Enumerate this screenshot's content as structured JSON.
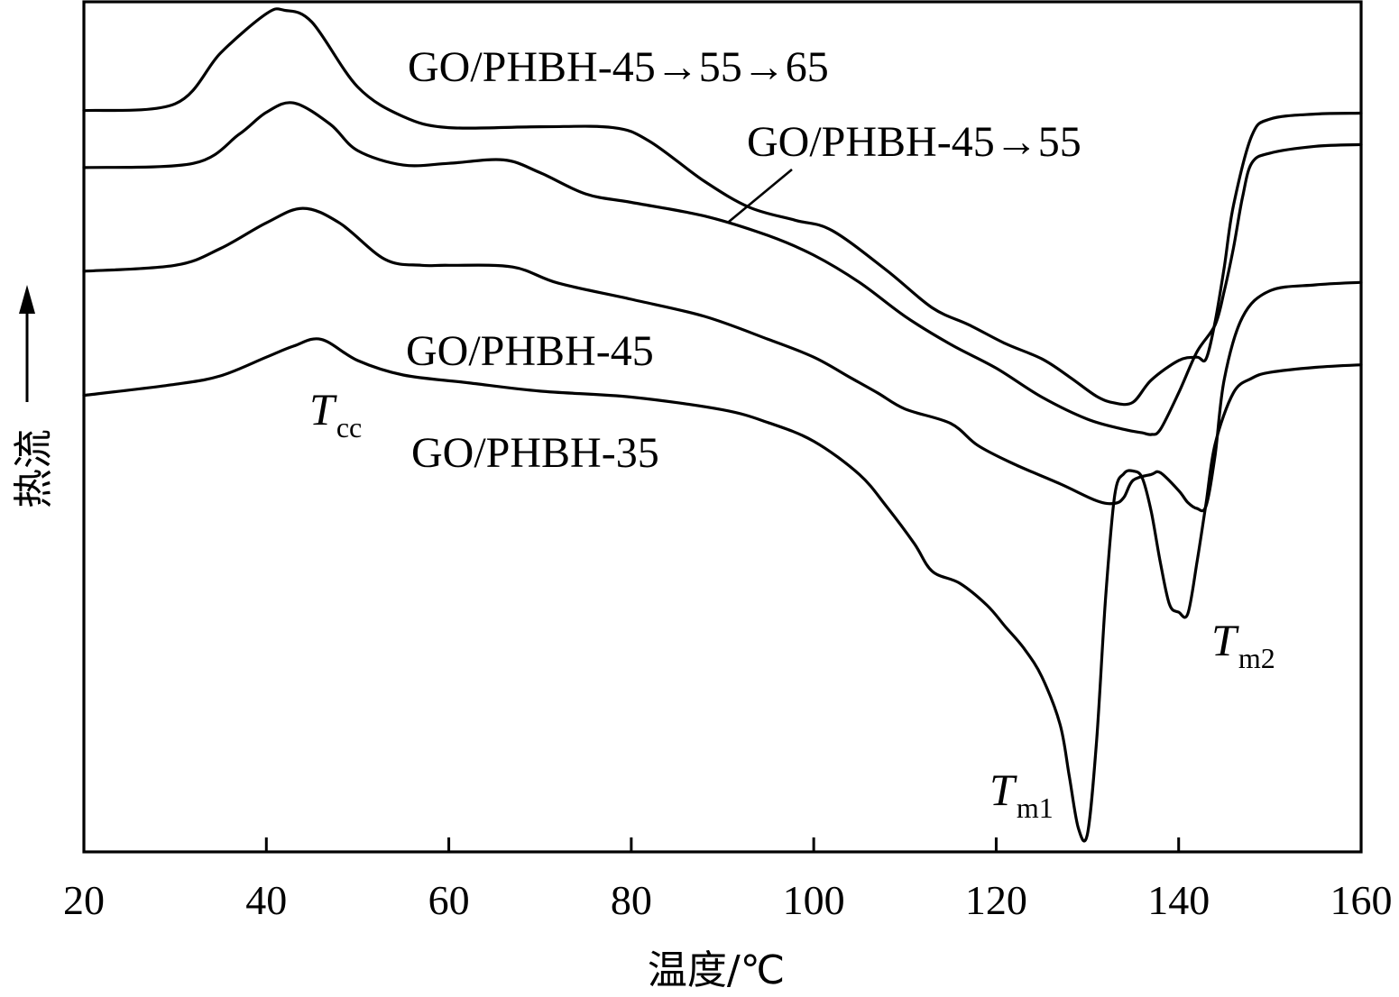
{
  "chart_data": {
    "type": "line",
    "xlabel": "温度/℃",
    "ylabel": "热流",
    "xlim": [
      20,
      160
    ],
    "xticks": [
      "20",
      "40",
      "60",
      "80",
      "100",
      "120",
      "140",
      "160"
    ],
    "yticks": [],
    "grid": false,
    "legend": "none",
    "series": [
      {
        "name": "GO/PHBH-45→55→65",
        "points": [
          [
            20,
            0.872
          ],
          [
            30,
            0.88
          ],
          [
            35,
            0.94
          ],
          [
            40,
            0.986
          ],
          [
            42,
            0.99
          ],
          [
            45,
            0.976
          ],
          [
            50,
            0.9
          ],
          [
            55,
            0.865
          ],
          [
            60,
            0.852
          ],
          [
            70,
            0.853
          ],
          [
            78,
            0.852
          ],
          [
            82,
            0.836
          ],
          [
            88,
            0.789
          ],
          [
            93,
            0.758
          ],
          [
            98,
            0.743
          ],
          [
            102,
            0.731
          ],
          [
            108,
            0.684
          ],
          [
            113,
            0.64
          ],
          [
            117,
            0.62
          ],
          [
            121,
            0.598
          ],
          [
            125,
            0.58
          ],
          [
            128,
            0.559
          ],
          [
            131,
            0.536
          ],
          [
            133,
            0.528
          ],
          [
            135,
            0.529
          ],
          [
            137,
            0.555
          ],
          [
            140,
            0.578
          ],
          [
            142,
            0.582
          ],
          [
            143,
            0.58
          ],
          [
            144,
            0.624
          ],
          [
            145,
            0.688
          ],
          [
            146,
            0.76
          ],
          [
            148,
            0.842
          ],
          [
            150,
            0.862
          ],
          [
            155,
            0.868
          ],
          [
            160,
            0.869
          ]
        ]
      },
      {
        "name": "GO/PHBH-45→55",
        "points": [
          [
            20,
            0.805
          ],
          [
            32,
            0.81
          ],
          [
            37,
            0.844
          ],
          [
            40,
            0.87
          ],
          [
            43,
            0.881
          ],
          [
            47,
            0.856
          ],
          [
            50,
            0.825
          ],
          [
            55,
            0.808
          ],
          [
            60,
            0.81
          ],
          [
            66,
            0.814
          ],
          [
            70,
            0.799
          ],
          [
            75,
            0.774
          ],
          [
            80,
            0.764
          ],
          [
            88,
            0.748
          ],
          [
            95,
            0.725
          ],
          [
            100,
            0.702
          ],
          [
            105,
            0.67
          ],
          [
            110,
            0.63
          ],
          [
            115,
            0.597
          ],
          [
            120,
            0.569
          ],
          [
            125,
            0.535
          ],
          [
            130,
            0.509
          ],
          [
            134,
            0.497
          ],
          [
            136,
            0.493
          ],
          [
            137,
            0.491
          ],
          [
            138,
            0.497
          ],
          [
            140,
            0.54
          ],
          [
            142,
            0.588
          ],
          [
            144,
            0.62
          ],
          [
            145,
            0.66
          ],
          [
            146,
            0.71
          ],
          [
            147,
            0.77
          ],
          [
            148,
            0.81
          ],
          [
            150,
            0.822
          ],
          [
            155,
            0.83
          ],
          [
            160,
            0.832
          ]
        ]
      },
      {
        "name": "GO/PHBH-45",
        "points": [
          [
            20,
            0.683
          ],
          [
            30,
            0.69
          ],
          [
            35,
            0.71
          ],
          [
            40,
            0.74
          ],
          [
            44,
            0.757
          ],
          [
            48,
            0.74
          ],
          [
            53,
            0.697
          ],
          [
            57,
            0.69
          ],
          [
            60,
            0.69
          ],
          [
            67,
            0.688
          ],
          [
            72,
            0.669
          ],
          [
            80,
            0.65
          ],
          [
            88,
            0.63
          ],
          [
            95,
            0.603
          ],
          [
            100,
            0.582
          ],
          [
            104,
            0.558
          ],
          [
            107,
            0.54
          ],
          [
            110,
            0.521
          ],
          [
            115,
            0.504
          ],
          [
            118,
            0.478
          ],
          [
            122,
            0.456
          ],
          [
            127,
            0.433
          ],
          [
            131,
            0.413
          ],
          [
            133,
            0.41
          ],
          [
            134,
            0.417
          ],
          [
            135,
            0.437
          ],
          [
            137,
            0.444
          ],
          [
            138,
            0.446
          ],
          [
            140,
            0.425
          ],
          [
            141,
            0.411
          ],
          [
            142,
            0.404
          ],
          [
            143,
            0.407
          ],
          [
            144,
            0.467
          ],
          [
            145,
            0.556
          ],
          [
            147,
            0.629
          ],
          [
            150,
            0.66
          ],
          [
            155,
            0.667
          ],
          [
            160,
            0.67
          ]
        ]
      },
      {
        "name": "GO/PHBH-35",
        "points": [
          [
            20,
            0.537
          ],
          [
            30,
            0.55
          ],
          [
            35,
            0.56
          ],
          [
            40,
            0.582
          ],
          [
            43,
            0.595
          ],
          [
            46,
            0.603
          ],
          [
            50,
            0.578
          ],
          [
            55,
            0.561
          ],
          [
            62,
            0.552
          ],
          [
            70,
            0.542
          ],
          [
            80,
            0.535
          ],
          [
            90,
            0.52
          ],
          [
            95,
            0.505
          ],
          [
            100,
            0.483
          ],
          [
            105,
            0.444
          ],
          [
            108,
            0.406
          ],
          [
            111,
            0.363
          ],
          [
            113,
            0.33
          ],
          [
            116,
            0.316
          ],
          [
            119,
            0.29
          ],
          [
            121,
            0.265
          ],
          [
            123,
            0.24
          ],
          [
            125,
            0.206
          ],
          [
            127,
            0.15
          ],
          [
            128,
            0.09
          ],
          [
            129,
            0.028
          ],
          [
            130,
            0.021
          ],
          [
            131,
            0.13
          ],
          [
            132,
            0.3
          ],
          [
            133,
            0.42
          ],
          [
            134,
            0.445
          ],
          [
            135,
            0.448
          ],
          [
            136,
            0.44
          ],
          [
            137,
            0.4
          ],
          [
            138,
            0.34
          ],
          [
            139,
            0.291
          ],
          [
            140,
            0.282
          ],
          [
            141,
            0.28
          ],
          [
            142,
            0.34
          ],
          [
            143,
            0.41
          ],
          [
            144,
            0.48
          ],
          [
            146,
            0.54
          ],
          [
            148,
            0.557
          ],
          [
            150,
            0.564
          ],
          [
            155,
            0.57
          ],
          [
            160,
            0.573
          ]
        ]
      }
    ]
  },
  "labels": {
    "curve_45_55_65": "GO/PHBH-45→55→65",
    "curve_45_55": "GO/PHBH-45→55",
    "curve_45": "GO/PHBH-45",
    "curve_35": "GO/PHBH-35",
    "tcc_main": "T",
    "tcc_sub": "cc",
    "tm1_main": "T",
    "tm1_sub": "m1",
    "tm2_main": "T",
    "tm2_sub": "m2"
  }
}
